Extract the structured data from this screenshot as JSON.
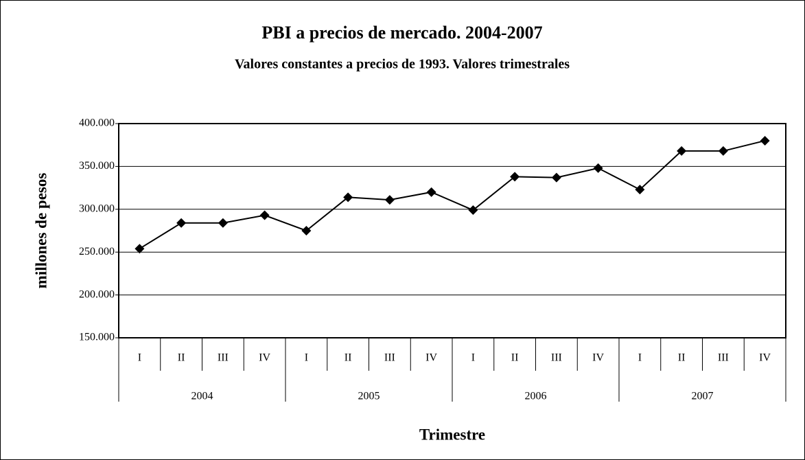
{
  "chart_data": {
    "type": "line",
    "title": "PBI a precios de mercado. 2004-2007",
    "subtitle": "Valores constantes a precios de 1993. Valores trimestrales",
    "y_label": "millones de pesos",
    "x_label": "Trimestre",
    "categories": [
      "I",
      "II",
      "III",
      "IV",
      "I",
      "II",
      "III",
      "IV",
      "I",
      "II",
      "III",
      "IV",
      "I",
      "II",
      "III",
      "IV"
    ],
    "years": [
      "2004",
      "2005",
      "2006",
      "2007"
    ],
    "values": [
      254000,
      284000,
      284000,
      293000,
      275000,
      314000,
      311000,
      320000,
      299000,
      338000,
      337000,
      348000,
      323000,
      368000,
      368000,
      380000
    ],
    "color": "#000000",
    "ylim": [
      150000,
      400000
    ],
    "yticks": [
      {
        "value": 150000,
        "label": "150.000"
      },
      {
        "value": 200000,
        "label": "200.000"
      },
      {
        "value": 250000,
        "label": "250.000"
      },
      {
        "value": 300000,
        "label": "300.000"
      },
      {
        "value": 350000,
        "label": "350.000"
      },
      {
        "value": 400000,
        "label": "400.000"
      }
    ],
    "grid": true
  }
}
